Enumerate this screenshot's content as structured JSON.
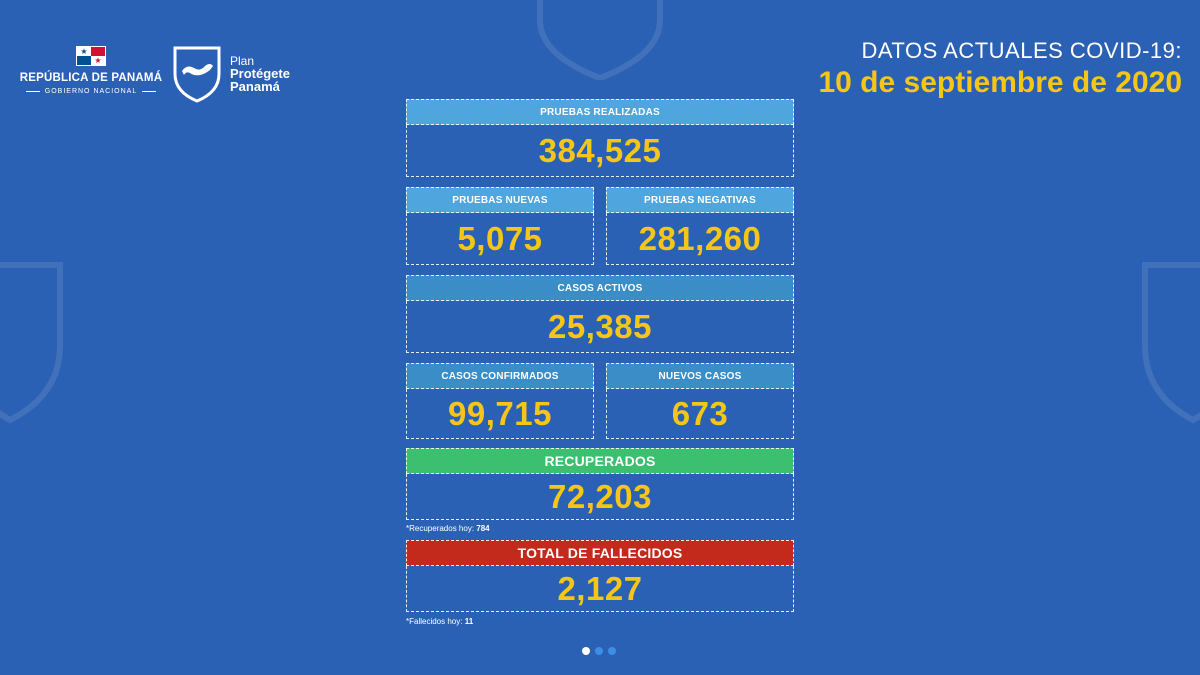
{
  "header": {
    "gov_title": "REPÚBLICA DE PANAMÁ",
    "gov_subtitle": "GOBIERNO NACIONAL",
    "plan_small": "Plan",
    "plan_line1": "Protégete",
    "plan_line2": "Panamá",
    "title": "DATOS ACTUALES COVID-19:",
    "date": "10 de septiembre de 2020"
  },
  "stats": {
    "pruebas_realizadas": {
      "label": "PRUEBAS REALIZADAS",
      "value": "384,525"
    },
    "pruebas_nuevas": {
      "label": "PRUEBAS NUEVAS",
      "value": "5,075"
    },
    "pruebas_negativas": {
      "label": "PRUEBAS NEGATIVAS",
      "value": "281,260"
    },
    "casos_activos": {
      "label": "CASOS ACTIVOS",
      "value": "25,385"
    },
    "casos_confirmados": {
      "label": "CASOS CONFIRMADOS",
      "value": "99,715"
    },
    "nuevos_casos": {
      "label": "NUEVOS CASOS",
      "value": "673"
    },
    "recuperados": {
      "label": "RECUPERADOS",
      "value": "72,203",
      "note_label": "*Recuperados hoy:",
      "note_value": "784"
    },
    "fallecidos": {
      "label": "TOTAL DE FALLECIDOS",
      "value": "2,127",
      "note_label": "*Fallecidos hoy:",
      "note_value": "11"
    }
  },
  "carousel": {
    "count": 3,
    "active_index": 0
  },
  "colors": {
    "background": "#2b61b4",
    "accent_yellow": "#f5c518",
    "label_light": "#4fa6df",
    "label_mid": "#3a8dc7",
    "label_green": "#3cbf6e",
    "label_red": "#c42a1c"
  }
}
